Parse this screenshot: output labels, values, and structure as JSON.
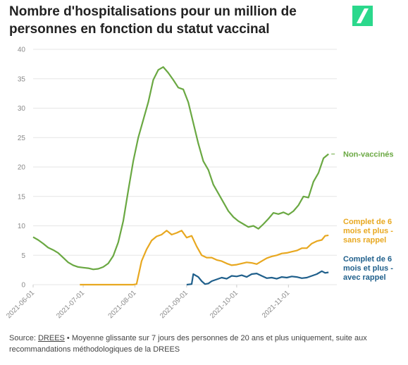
{
  "title": "Nombre d'hospitalisations pour un million de personnes en fonction du statut vaccinal",
  "logo": {
    "icon": "huffpost-slash-logo",
    "color": "#2bd88c"
  },
  "source": {
    "prefix": "Source: ",
    "link": "DREES",
    "rest": " • Moyenne glissante sur 7 jours des personnes de 20 ans et plus uniquement, suite aux recommandations méthodologiques de la DREES"
  },
  "chart_data": {
    "type": "line",
    "title": "Nombre d'hospitalisations pour un million de personnes en fonction du statut vaccinal",
    "xlabel": "",
    "ylabel": "",
    "ylim": [
      0,
      40
    ],
    "yticks": [
      0,
      5,
      10,
      15,
      20,
      25,
      30,
      35,
      40
    ],
    "xlim": [
      "2021-06-01",
      "2021-11-30"
    ],
    "xticks": [
      "2021-06-01",
      "2021-07-01",
      "2021-08-01",
      "2021-09-01",
      "2021-10-01",
      "2021-11-01"
    ],
    "grid": true,
    "legend": "direct labels at line ends",
    "series": [
      {
        "name": "Non-vaccinés",
        "color": "#6aa842",
        "points": [
          [
            "2021-06-01",
            8.1
          ],
          [
            "2021-06-04",
            7.6
          ],
          [
            "2021-06-07",
            7.0
          ],
          [
            "2021-06-10",
            6.3
          ],
          [
            "2021-06-13",
            5.9
          ],
          [
            "2021-06-16",
            5.4
          ],
          [
            "2021-06-19",
            4.6
          ],
          [
            "2021-06-22",
            3.8
          ],
          [
            "2021-06-25",
            3.3
          ],
          [
            "2021-06-28",
            3.0
          ],
          [
            "2021-07-01",
            2.9
          ],
          [
            "2021-07-04",
            2.8
          ],
          [
            "2021-07-07",
            2.6
          ],
          [
            "2021-07-10",
            2.7
          ],
          [
            "2021-07-13",
            3.0
          ],
          [
            "2021-07-16",
            3.6
          ],
          [
            "2021-07-19",
            4.9
          ],
          [
            "2021-07-22",
            7.2
          ],
          [
            "2021-07-25",
            10.8
          ],
          [
            "2021-07-28",
            16.0
          ],
          [
            "2021-07-31",
            21.0
          ],
          [
            "2021-08-03",
            25.0
          ],
          [
            "2021-08-06",
            28.0
          ],
          [
            "2021-08-09",
            31.0
          ],
          [
            "2021-08-12",
            34.8
          ],
          [
            "2021-08-15",
            36.5
          ],
          [
            "2021-08-18",
            37.0
          ],
          [
            "2021-08-21",
            36.0
          ],
          [
            "2021-08-24",
            34.8
          ],
          [
            "2021-08-27",
            33.5
          ],
          [
            "2021-08-30",
            33.2
          ],
          [
            "2021-09-02",
            31.0
          ],
          [
            "2021-09-05",
            27.5
          ],
          [
            "2021-09-08",
            24.0
          ],
          [
            "2021-09-11",
            21.0
          ],
          [
            "2021-09-14",
            19.5
          ],
          [
            "2021-09-17",
            17.0
          ],
          [
            "2021-09-20",
            15.5
          ],
          [
            "2021-09-23",
            14.0
          ],
          [
            "2021-09-26",
            12.5
          ],
          [
            "2021-09-29",
            11.5
          ],
          [
            "2021-10-02",
            10.8
          ],
          [
            "2021-10-05",
            10.3
          ],
          [
            "2021-10-08",
            9.8
          ],
          [
            "2021-10-11",
            10.0
          ],
          [
            "2021-10-14",
            9.5
          ],
          [
            "2021-10-17",
            10.3
          ],
          [
            "2021-10-20",
            11.2
          ],
          [
            "2021-10-23",
            12.2
          ],
          [
            "2021-10-26",
            12.0
          ],
          [
            "2021-10-29",
            12.3
          ],
          [
            "2021-11-01",
            11.9
          ],
          [
            "2021-11-04",
            12.5
          ],
          [
            "2021-11-07",
            13.5
          ],
          [
            "2021-11-10",
            15.0
          ],
          [
            "2021-11-13",
            14.8
          ],
          [
            "2021-11-16",
            17.5
          ],
          [
            "2021-11-19",
            19.0
          ],
          [
            "2021-11-22",
            21.5
          ],
          [
            "2021-11-25",
            22.2
          ]
        ]
      },
      {
        "name": "Complet de 6 mois et plus - sans rappel",
        "color": "#e8a820",
        "points": [
          [
            "2021-06-29",
            0.0
          ],
          [
            "2021-07-31",
            0.0
          ],
          [
            "2021-08-02",
            0.1
          ],
          [
            "2021-08-05",
            4.0
          ],
          [
            "2021-08-08",
            6.0
          ],
          [
            "2021-08-11",
            7.5
          ],
          [
            "2021-08-14",
            8.2
          ],
          [
            "2021-08-17",
            8.5
          ],
          [
            "2021-08-20",
            9.2
          ],
          [
            "2021-08-23",
            8.5
          ],
          [
            "2021-08-26",
            8.8
          ],
          [
            "2021-08-29",
            9.2
          ],
          [
            "2021-09-01",
            8.0
          ],
          [
            "2021-09-04",
            8.3
          ],
          [
            "2021-09-07",
            6.5
          ],
          [
            "2021-09-10",
            5.0
          ],
          [
            "2021-09-13",
            4.6
          ],
          [
            "2021-09-16",
            4.6
          ],
          [
            "2021-09-19",
            4.2
          ],
          [
            "2021-09-22",
            4.0
          ],
          [
            "2021-09-25",
            3.6
          ],
          [
            "2021-09-28",
            3.3
          ],
          [
            "2021-10-01",
            3.4
          ],
          [
            "2021-10-04",
            3.6
          ],
          [
            "2021-10-07",
            3.8
          ],
          [
            "2021-10-10",
            3.7
          ],
          [
            "2021-10-13",
            3.5
          ],
          [
            "2021-10-16",
            4.0
          ],
          [
            "2021-10-19",
            4.5
          ],
          [
            "2021-10-22",
            4.8
          ],
          [
            "2021-10-25",
            5.0
          ],
          [
            "2021-10-28",
            5.3
          ],
          [
            "2021-10-31",
            5.4
          ],
          [
            "2021-11-03",
            5.6
          ],
          [
            "2021-11-06",
            5.8
          ],
          [
            "2021-11-09",
            6.2
          ],
          [
            "2021-11-12",
            6.2
          ],
          [
            "2021-11-15",
            7.0
          ],
          [
            "2021-11-18",
            7.4
          ],
          [
            "2021-11-21",
            7.6
          ],
          [
            "2021-11-23",
            8.3
          ],
          [
            "2021-11-25",
            8.4
          ]
        ]
      },
      {
        "name": "Complet de 6 mois et plus - avec rappel",
        "color": "#1f5f8b",
        "points": [
          [
            "2021-09-01",
            0.0
          ],
          [
            "2021-09-04",
            0.1
          ],
          [
            "2021-09-05",
            1.8
          ],
          [
            "2021-09-08",
            1.3
          ],
          [
            "2021-09-10",
            0.6
          ],
          [
            "2021-09-12",
            0.1
          ],
          [
            "2021-09-14",
            0.2
          ],
          [
            "2021-09-16",
            0.6
          ],
          [
            "2021-09-19",
            0.9
          ],
          [
            "2021-09-22",
            1.2
          ],
          [
            "2021-09-25",
            1.0
          ],
          [
            "2021-09-28",
            1.5
          ],
          [
            "2021-10-01",
            1.4
          ],
          [
            "2021-10-04",
            1.6
          ],
          [
            "2021-10-07",
            1.3
          ],
          [
            "2021-10-10",
            1.8
          ],
          [
            "2021-10-13",
            1.9
          ],
          [
            "2021-10-16",
            1.5
          ],
          [
            "2021-10-19",
            1.1
          ],
          [
            "2021-10-22",
            1.2
          ],
          [
            "2021-10-25",
            1.0
          ],
          [
            "2021-10-28",
            1.3
          ],
          [
            "2021-10-31",
            1.2
          ],
          [
            "2021-11-03",
            1.4
          ],
          [
            "2021-11-06",
            1.3
          ],
          [
            "2021-11-09",
            1.1
          ],
          [
            "2021-11-12",
            1.2
          ],
          [
            "2021-11-15",
            1.5
          ],
          [
            "2021-11-18",
            1.8
          ],
          [
            "2021-11-21",
            2.3
          ],
          [
            "2021-11-23",
            2.0
          ],
          [
            "2021-11-25",
            2.1
          ]
        ]
      }
    ],
    "end_labels": [
      {
        "series": 0,
        "lines": [
          "Non-vaccinés"
        ]
      },
      {
        "series": 1,
        "lines": [
          "Complet de 6",
          "mois et plus -",
          "sans rappel"
        ]
      },
      {
        "series": 2,
        "lines": [
          "Complet de 6",
          "mois et plus -",
          "avec rappel"
        ]
      }
    ]
  }
}
